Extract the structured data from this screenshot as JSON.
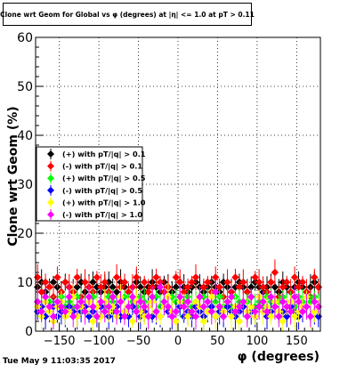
{
  "timestamp": "Tue May  9 11:03:35 2017",
  "chart_data": {
    "type": "scatter",
    "title": "Clone wrt Geom for Global vs φ (degrees) at |η| <= 1.0 at pT > 0.11",
    "xlabel": "φ (degrees)",
    "ylabel": "Clone wrt  Geom (%)",
    "xlim": [
      -180,
      180
    ],
    "ylim": [
      0,
      60
    ],
    "x_ticks": [
      -150,
      -100,
      -50,
      0,
      50,
      100,
      150
    ],
    "y_ticks": [
      0,
      10,
      20,
      30,
      40,
      50,
      60
    ],
    "grid": true,
    "legend_position": "middle-left",
    "bin_width_deg": 5,
    "bin_centers_start": -177.5,
    "series": [
      {
        "name": "(+) with pT/|q| > 0.1",
        "color": "#000000",
        "values": [
          9,
          10,
          8,
          9,
          10,
          9,
          8,
          10,
          9,
          8,
          9,
          10,
          8,
          9,
          10,
          9,
          8,
          9,
          10,
          9,
          8,
          10,
          9,
          8,
          9,
          10,
          9,
          8,
          9,
          10,
          9,
          8,
          10,
          9,
          8,
          9,
          10,
          9,
          8,
          9,
          10,
          9,
          8,
          9,
          10,
          9,
          8,
          10,
          9,
          8,
          9,
          10,
          9,
          8,
          9,
          10,
          9,
          8,
          9,
          10,
          9,
          8,
          10,
          9,
          8,
          9,
          10,
          9,
          8,
          9,
          10,
          9
        ]
      },
      {
        "name": "(-) with pT/|q| > 0.1",
        "color": "#ff0000",
        "values": [
          11,
          8,
          10,
          9,
          7,
          11,
          8,
          10,
          9,
          8,
          11,
          7,
          10,
          9,
          8,
          11,
          9,
          10,
          8,
          7,
          11,
          9,
          10,
          8,
          9,
          11,
          7,
          10,
          8,
          9,
          11,
          10,
          8,
          9,
          7,
          11,
          10,
          8,
          9,
          10,
          11,
          7,
          9,
          10,
          8,
          11,
          9,
          7,
          10,
          8,
          11,
          9,
          10,
          8,
          7,
          11,
          10,
          9,
          8,
          10,
          12,
          7,
          9,
          10,
          8,
          11,
          9,
          10,
          8,
          7,
          11,
          9
        ]
      },
      {
        "name": "(+) with pT/|q| > 0.5",
        "color": "#00ff00",
        "values": [
          6,
          5,
          7,
          6,
          5,
          6,
          7,
          5,
          6,
          5,
          7,
          6,
          5,
          6,
          7,
          5,
          6,
          5,
          7,
          6,
          5,
          6,
          7,
          5,
          6,
          5,
          7,
          6,
          5,
          6,
          7,
          5,
          6,
          5,
          7,
          6,
          5,
          6,
          7,
          5,
          6,
          5,
          7,
          6,
          5,
          6,
          7,
          5,
          6,
          5,
          7,
          6,
          5,
          6,
          7,
          5,
          6,
          5,
          7,
          6,
          5,
          6,
          7,
          5,
          6,
          5,
          7,
          6,
          5,
          6,
          7,
          5
        ]
      },
      {
        "name": "(-) with pT/|q| > 0.5",
        "color": "#0000ff",
        "values": [
          4,
          5,
          3,
          4,
          5,
          3,
          4,
          3,
          5,
          4,
          3,
          4,
          5,
          3,
          4,
          3,
          5,
          4,
          3,
          4,
          5,
          3,
          4,
          3,
          5,
          4,
          3,
          4,
          5,
          3,
          4,
          3,
          5,
          4,
          3,
          4,
          5,
          3,
          4,
          3,
          5,
          4,
          3,
          4,
          5,
          3,
          4,
          3,
          5,
          4,
          3,
          4,
          5,
          3,
          4,
          3,
          5,
          4,
          3,
          4,
          5,
          3,
          4,
          3,
          5,
          4,
          3,
          4,
          5,
          3,
          4,
          3
        ]
      },
      {
        "name": "(+) with pT/|q| > 1.0",
        "color": "#ffff00",
        "values": [
          5,
          3,
          6,
          4,
          2,
          5,
          6,
          3,
          4,
          7,
          3,
          5,
          4,
          6,
          2,
          5,
          3,
          6,
          4,
          5,
          3,
          7,
          4,
          5,
          2,
          6,
          4,
          3,
          5,
          6,
          4,
          3,
          5,
          7,
          4,
          2,
          6,
          5,
          3,
          4,
          6,
          5,
          2,
          4,
          7,
          3,
          5,
          4,
          6,
          3,
          5,
          2,
          6,
          4,
          5,
          3,
          7,
          4,
          5,
          3,
          6,
          4,
          2,
          5,
          6,
          3,
          4,
          5,
          7,
          3,
          4,
          5
        ]
      },
      {
        "name": "(-) with pT/|q| > 1.0",
        "color": "#ff00ff",
        "values": [
          6,
          4,
          7,
          5,
          3,
          6,
          5,
          4,
          7,
          3,
          5,
          6,
          4,
          7,
          5,
          3,
          6,
          4,
          5,
          7,
          4,
          6,
          3,
          5,
          7,
          4,
          6,
          5,
          3,
          7,
          4,
          9,
          6,
          5,
          3,
          4,
          7,
          5,
          6,
          4,
          3,
          7,
          5,
          6,
          4,
          8,
          5,
          3,
          6,
          7,
          4,
          5,
          6,
          3,
          7,
          4,
          5,
          6,
          4,
          7,
          5,
          3,
          6,
          5,
          4,
          7,
          6,
          4,
          5,
          3,
          6,
          5
        ]
      }
    ]
  }
}
